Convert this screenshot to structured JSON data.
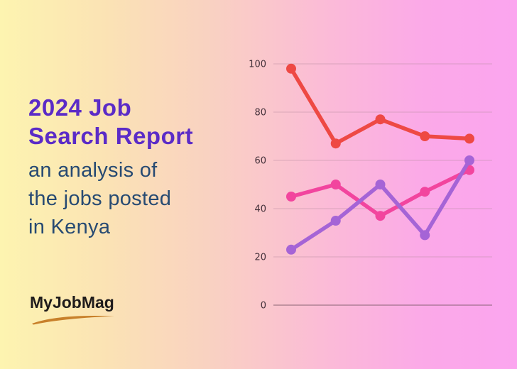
{
  "background": {
    "gradient_stops": [
      "#fdf4b0",
      "#f9d2c1",
      "#fbb4dd",
      "#fba5ef"
    ]
  },
  "hero": {
    "title": "2024 Job Search Report",
    "title_lines": [
      "2024 Job",
      "Search Report"
    ],
    "title_color": "#5b2bc7",
    "subtitle": "an analysis of the jobs posted in Kenya",
    "subtitle_lines": [
      "an analysis of",
      "the jobs posted",
      "in Kenya"
    ],
    "subtitle_color": "#274a72"
  },
  "logo": {
    "text": "MyJobMag",
    "text_color": "#1f1c1c",
    "swoosh_color": "#c8802b"
  },
  "chart_data": {
    "type": "line",
    "title": "",
    "xlabel": "",
    "ylabel": "",
    "x_labels": [
      "",
      "",
      "",
      "",
      ""
    ],
    "series": [
      {
        "name": "pink-series",
        "color": "#f2459e",
        "values": [
          45,
          50,
          37,
          47,
          56
        ]
      },
      {
        "name": "purple-series",
        "color": "#a564d6",
        "values": [
          23,
          35,
          50,
          29,
          60
        ]
      },
      {
        "name": "red-series",
        "color": "#ee4944",
        "values": [
          98,
          67,
          77,
          70,
          69
        ]
      }
    ],
    "ylim": [
      0,
      100
    ],
    "yticks": [
      100,
      80,
      60,
      40,
      20,
      0
    ],
    "grid": true,
    "legend": "none",
    "tick_label_color": "#44313a",
    "gridline_color": "#b98ca0",
    "axis_line_color": "#7d5a68"
  }
}
